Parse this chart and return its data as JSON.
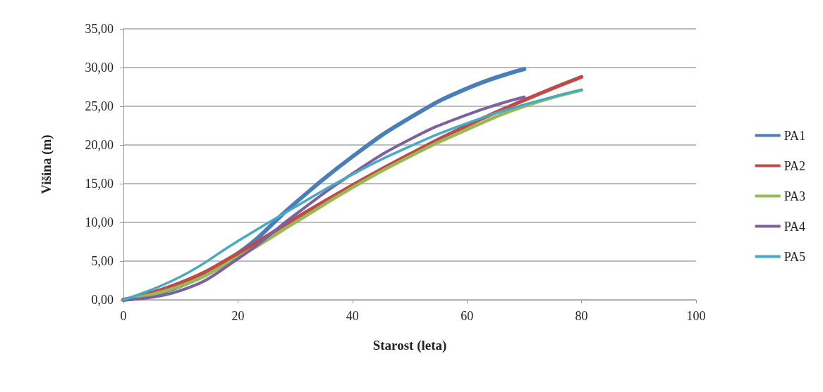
{
  "chart_data": {
    "type": "line",
    "xlabel": "Starost (leta)",
    "ylabel": "Višina (m)",
    "x": [
      0,
      10,
      20,
      30,
      40,
      50,
      60,
      70,
      80
    ],
    "series": [
      {
        "name": "PA1",
        "color": "#4a7ebb",
        "values": [
          0,
          1.8,
          6,
          12.5,
          18.5,
          23.5,
          27.3,
          29.8,
          null
        ]
      },
      {
        "name": "PA2",
        "color": "#be4b48",
        "values": [
          0,
          2.2,
          6,
          10.5,
          14.8,
          18.8,
          22.5,
          25.8,
          28.8
        ]
      },
      {
        "name": "PA3",
        "color": "#98b954",
        "values": [
          0,
          1.8,
          5.5,
          10,
          14.5,
          18.5,
          22,
          25,
          27.1
        ]
      },
      {
        "name": "PA4",
        "color": "#7d60a0",
        "values": [
          0,
          1.2,
          5.3,
          11,
          16.3,
          20.7,
          23.9,
          26.2,
          null
        ]
      },
      {
        "name": "PA5",
        "color": "#46aac5",
        "values": [
          0,
          3,
          7.6,
          12,
          16.2,
          19.8,
          22.8,
          25.2,
          27.1
        ]
      }
    ],
    "xlim": [
      0,
      100
    ],
    "xticks": [
      0,
      20,
      40,
      60,
      80,
      100
    ],
    "ylim": [
      0,
      35
    ],
    "yticks": [
      {
        "value": 0,
        "label": "0,00"
      },
      {
        "value": 5,
        "label": "5,00"
      },
      {
        "value": 10,
        "label": "10,00"
      },
      {
        "value": 15,
        "label": "15,00"
      },
      {
        "value": 20,
        "label": "20,00"
      },
      {
        "value": 25,
        "label": "25,00"
      },
      {
        "value": 30,
        "label": "30,00"
      },
      {
        "value": 35,
        "label": "35,00"
      }
    ],
    "grid": "y",
    "legend": "right",
    "marker": "none",
    "line_style": "solid"
  }
}
